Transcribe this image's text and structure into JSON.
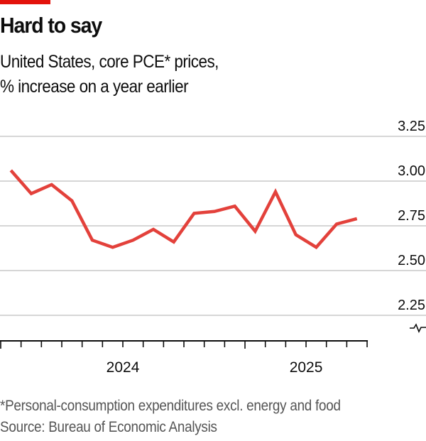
{
  "header": {
    "title": "Hard to say",
    "subtitle_line1": "United States, core PCE* prices,",
    "subtitle_line2": "% increase on a year earlier"
  },
  "colors": {
    "accent": "#E3120B",
    "line": "#E3413B",
    "grid": "#c8c8c8",
    "axis": "#0d0d0d"
  },
  "footer": {
    "footnote": "*Personal-consumption expenditures excl. energy and food",
    "source": "Source: Bureau of Economic Analysis"
  },
  "chart_data": {
    "type": "line",
    "title": "Hard to say",
    "subtitle": "United States, core PCE* prices, % increase on a year earlier",
    "xlabel": "",
    "ylabel": "",
    "x": [
      "2024-01",
      "2024-02",
      "2024-03",
      "2024-04",
      "2024-05",
      "2024-06",
      "2024-07",
      "2024-08",
      "2024-09",
      "2024-10",
      "2024-11",
      "2024-12",
      "2025-01",
      "2025-02",
      "2025-03",
      "2025-04",
      "2025-05",
      "2025-06"
    ],
    "series": [
      {
        "name": "Core PCE prices, % y/y",
        "values": [
          3.06,
          2.93,
          2.98,
          2.89,
          2.67,
          2.63,
          2.67,
          2.73,
          2.66,
          2.82,
          2.83,
          2.86,
          2.72,
          2.94,
          2.7,
          2.63,
          2.76,
          2.79
        ]
      }
    ],
    "ylim": [
      2.25,
      3.25
    ],
    "yticks": [
      "3.25",
      "3.00",
      "2.75",
      "2.50",
      "2.25"
    ],
    "ytick_values": [
      3.25,
      3.0,
      2.75,
      2.5,
      2.25
    ],
    "y_axis_side": "right",
    "y_axis_break": true,
    "x_months_span": 18,
    "x_tick_interval": "month",
    "xtick_labels": [
      {
        "label": "2024",
        "year_start_index": 0
      },
      {
        "label": "2025",
        "year_start_index": 12
      }
    ],
    "grid": true,
    "legend": "none"
  }
}
